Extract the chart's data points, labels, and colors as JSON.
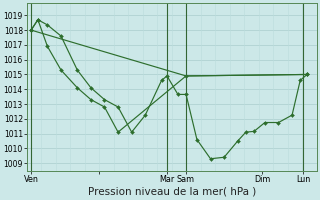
{
  "bg_color": "#cce8e8",
  "grid_major_color": "#aacece",
  "grid_minor_color": "#bbdddd",
  "vline_color": "#336633",
  "line_color": "#2d6e2d",
  "marker_color": "#2d6e2d",
  "xlabel": "Pression niveau de la mer( hPa )",
  "xlabel_fontsize": 7.5,
  "ylim": [
    1008.5,
    1019.8
  ],
  "ytick_fontsize": 5.5,
  "xtick_fontsize": 5.8,
  "yticks": [
    1009,
    1010,
    1011,
    1012,
    1013,
    1014,
    1015,
    1016,
    1017,
    1018,
    1019
  ],
  "xtick_positions": [
    0.0,
    2.5,
    5.0,
    5.7,
    8.5,
    10.0
  ],
  "xtick_labels": [
    "Ven",
    "",
    "Mar",
    "Sam",
    "Dim",
    "Lun"
  ],
  "vlines": [
    0.0,
    5.0,
    5.7,
    10.0
  ],
  "xlim": [
    -0.15,
    10.5
  ],
  "line1_x": [
    0.0,
    0.25,
    0.6,
    1.1,
    1.7,
    2.2,
    2.7,
    3.2,
    3.7,
    4.2,
    4.8,
    5.0,
    5.4,
    5.7,
    6.1,
    6.6,
    7.1,
    7.6,
    7.9,
    8.2,
    8.6,
    9.1,
    9.6,
    9.9,
    10.15
  ],
  "line1_y": [
    1018.0,
    1018.7,
    1018.35,
    1017.6,
    1015.3,
    1014.1,
    1013.3,
    1012.8,
    1011.1,
    1012.25,
    1014.6,
    1014.9,
    1013.65,
    1013.65,
    1010.6,
    1009.3,
    1009.4,
    1010.5,
    1011.1,
    1011.15,
    1011.75,
    1011.75,
    1012.25,
    1014.6,
    1015.0
  ],
  "line2_x": [
    0.0,
    0.25,
    0.6,
    1.1,
    1.7,
    2.2,
    2.7,
    3.2,
    5.7,
    10.15
  ],
  "line2_y": [
    1018.0,
    1018.7,
    1016.9,
    1015.3,
    1014.1,
    1013.3,
    1012.8,
    1011.1,
    1014.9,
    1015.0
  ],
  "line3_x": [
    0.0,
    5.7,
    10.15
  ],
  "line3_y": [
    1018.0,
    1014.9,
    1015.0
  ]
}
